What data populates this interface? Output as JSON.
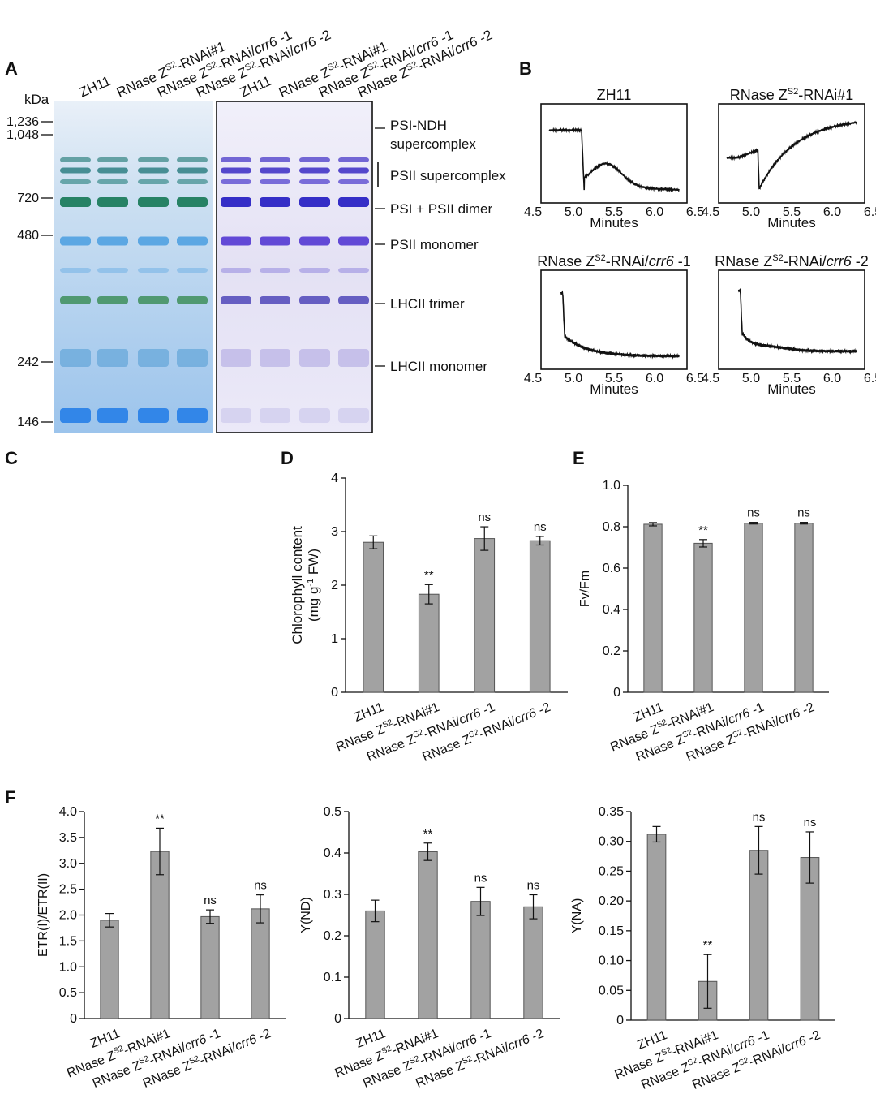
{
  "panels": {
    "A": "A",
    "B": "B",
    "C": "C",
    "D": "D",
    "E": "E",
    "F": "F"
  },
  "lines": [
    {
      "id": "ZH11",
      "base": "ZH11",
      "sup": "",
      "suffix": "",
      "ital": "",
      "tail": ""
    },
    {
      "id": "RNAi1",
      "base": "RNase Z",
      "sup": "S2",
      "suffix": "-RNAi#1",
      "ital": "",
      "tail": ""
    },
    {
      "id": "crr6-1",
      "base": "RNase Z",
      "sup": "S2",
      "suffix": "-RNAi/",
      "ital": "crr6",
      "tail": " -1"
    },
    {
      "id": "crr6-2",
      "base": "RNase Z",
      "sup": "S2",
      "suffix": "-RNAi/",
      "ital": "crr6",
      "tail": " -2"
    }
  ],
  "gel": {
    "kda_label": "kDa",
    "markers": [
      "1,236",
      "1,048",
      "720",
      "480",
      "242",
      "146"
    ],
    "bands": [
      "PSI-NDH",
      "supercomplex",
      "PSII supercomplex",
      "PSI + PSII dimer",
      "PSII monomer",
      "LHCII trimer",
      "LHCII monomer"
    ]
  },
  "traces": {
    "xlabel": "Minutes",
    "ticks": [
      "4.5",
      "5.0",
      "5.5",
      "6.0",
      "6.5"
    ]
  },
  "colors": {
    "bar": "#a2a2a2",
    "leaf": "#4f7d28",
    "gel_blue": "#2f6fd6",
    "gel_green": "#2a8a63",
    "gel_purple": "#4b35d0"
  },
  "chart_data": [
    {
      "id": "D",
      "type": "bar",
      "title": "",
      "ylabel": "Chlorophyll content (mg g-1 FW)",
      "ylabel_line1": "Chlorophyll content",
      "ylabel_line2_pre": "(mg g",
      "ylabel_line2_sup": "-1",
      "ylabel_line2_post": " FW)",
      "categories": [
        "ZH11",
        "RNase ZS2-RNAi#1",
        "RNase ZS2-RNAi/crr6 -1",
        "RNase ZS2-RNAi/crr6 -2"
      ],
      "values": [
        2.8,
        1.83,
        2.87,
        2.83
      ],
      "errors": [
        0.12,
        0.18,
        0.22,
        0.08
      ],
      "sig": [
        "",
        "**",
        "ns",
        "ns"
      ],
      "ylim": [
        0,
        4
      ],
      "yticks": [
        "0",
        "1",
        "2",
        "3",
        "4"
      ]
    },
    {
      "id": "E",
      "type": "bar",
      "title": "",
      "ylabel": "Fv/Fm",
      "categories": [
        "ZH11",
        "RNase ZS2-RNAi#1",
        "RNase ZS2-RNAi/crr6 -1",
        "RNase ZS2-RNAi/crr6 -2"
      ],
      "values": [
        0.812,
        0.72,
        0.817,
        0.817
      ],
      "errors": [
        0.008,
        0.018,
        0.004,
        0.004
      ],
      "sig": [
        "",
        "**",
        "ns",
        "ns"
      ],
      "ylim": [
        0,
        1.0
      ],
      "yticks": [
        "0",
        "0.2",
        "0.4",
        "0.6",
        "0.8",
        "1.0"
      ]
    },
    {
      "id": "F1",
      "type": "bar",
      "title": "",
      "ylabel": "ETR(I)/ETR(II)",
      "categories": [
        "ZH11",
        "RNase ZS2-RNAi#1",
        "RNase ZS2-RNAi/crr6 -1",
        "RNase ZS2-RNAi/crr6 -2"
      ],
      "values": [
        1.9,
        3.23,
        1.97,
        2.12
      ],
      "errors": [
        0.13,
        0.45,
        0.13,
        0.27
      ],
      "sig": [
        "",
        "**",
        "ns",
        "ns"
      ],
      "ylim": [
        0,
        4.0
      ],
      "yticks": [
        "0",
        "0.5",
        "1.0",
        "1.5",
        "2.0",
        "2.5",
        "3.0",
        "3.5",
        "4.0"
      ]
    },
    {
      "id": "F2",
      "type": "bar",
      "title": "",
      "ylabel": "Y(ND)",
      "categories": [
        "ZH11",
        "RNase ZS2-RNAi#1",
        "RNase ZS2-RNAi/crr6 -1",
        "RNase ZS2-RNAi/crr6 -2"
      ],
      "values": [
        0.26,
        0.403,
        0.283,
        0.27
      ],
      "errors": [
        0.026,
        0.021,
        0.034,
        0.029
      ],
      "sig": [
        "",
        "**",
        "ns",
        "ns"
      ],
      "ylim": [
        0,
        0.5
      ],
      "yticks": [
        "0",
        "0.1",
        "0.2",
        "0.3",
        "0.4",
        "0.5"
      ]
    },
    {
      "id": "F3",
      "type": "bar",
      "title": "",
      "ylabel": "Y(NA)",
      "categories": [
        "ZH11",
        "RNase ZS2-RNAi#1",
        "RNase ZS2-RNAi/crr6 -1",
        "RNase ZS2-RNAi/crr6 -2"
      ],
      "values": [
        0.312,
        0.065,
        0.285,
        0.273
      ],
      "errors": [
        0.013,
        0.045,
        0.04,
        0.043
      ],
      "sig": [
        "",
        "**",
        "ns",
        "ns"
      ],
      "ylim": [
        0,
        0.35
      ],
      "yticks": [
        "0",
        "0.05",
        "0.10",
        "0.15",
        "0.20",
        "0.25",
        "0.30",
        "0.35"
      ]
    }
  ]
}
